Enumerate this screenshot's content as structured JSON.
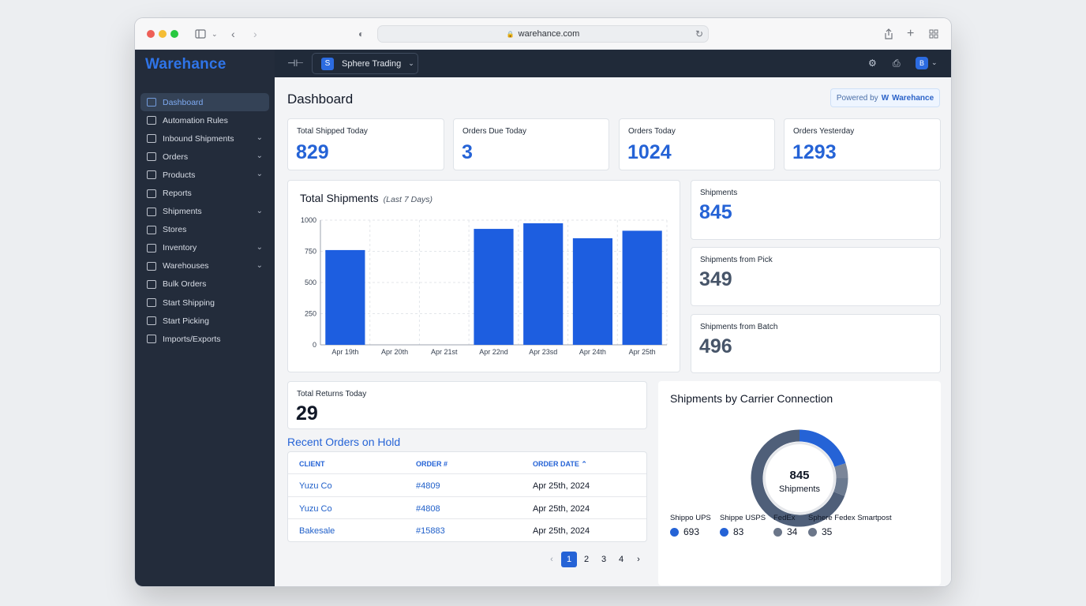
{
  "browser": {
    "url": "warehance.com"
  },
  "app": {
    "logo": "Warehance"
  },
  "sidebar": {
    "items": [
      {
        "label": "Dashboard",
        "active": true,
        "expandable": false,
        "icon": "monitor-icon"
      },
      {
        "label": "Automation Rules",
        "expandable": false,
        "icon": "automation-icon"
      },
      {
        "label": "Inbound Shipments",
        "expandable": true,
        "icon": "clipboard-icon"
      },
      {
        "label": "Orders",
        "expandable": true,
        "icon": "folder-icon"
      },
      {
        "label": "Products",
        "expandable": true,
        "icon": "boxes-icon"
      },
      {
        "label": "Reports",
        "expandable": false,
        "icon": "clock-icon"
      },
      {
        "label": "Shipments",
        "expandable": true,
        "icon": "list-icon"
      },
      {
        "label": "Stores",
        "expandable": false,
        "icon": "database-icon"
      },
      {
        "label": "Inventory",
        "expandable": true,
        "icon": "truck-icon"
      },
      {
        "label": "Warehouses",
        "expandable": true,
        "icon": "warehouse-icon"
      },
      {
        "label": "Bulk Orders",
        "expandable": false,
        "icon": "package-icon"
      },
      {
        "label": "Start Shipping",
        "expandable": false,
        "icon": "shipping-icon"
      },
      {
        "label": "Start Picking",
        "expandable": false,
        "icon": "radio-icon"
      },
      {
        "label": "Imports/Exports",
        "expandable": false,
        "icon": "arrows-icon"
      }
    ]
  },
  "topbar": {
    "tenant_initial": "S",
    "tenant_name": "Sphere Trading",
    "user_initial": "B"
  },
  "header": {
    "title": "Dashboard",
    "powered_by": "Powered by",
    "powered_brand": "Warehance"
  },
  "stats": [
    {
      "label": "Total Shipped Today",
      "value": "829"
    },
    {
      "label": "Orders Due Today",
      "value": "3"
    },
    {
      "label": "Orders Today",
      "value": "1024"
    },
    {
      "label": "Orders Yesterday",
      "value": "1293"
    }
  ],
  "side_stats": [
    {
      "label": "Shipments",
      "value": "845"
    },
    {
      "label": "Shipments from Pick",
      "value": "349"
    },
    {
      "label": "Shipments from Batch",
      "value": "496"
    }
  ],
  "returns": {
    "label": "Total Returns Today",
    "value": "29"
  },
  "chart_data": {
    "type": "bar",
    "title": "Total Shipments",
    "subtitle": "(Last 7 Days)",
    "categories": [
      "Apr 19th",
      "Apr 20th",
      "Apr 21st",
      "Apr 22nd",
      "Apr 23sd",
      "Apr 24th",
      "Apr 25th"
    ],
    "values": [
      760,
      0,
      0,
      930,
      975,
      855,
      915
    ],
    "ylim": [
      0,
      1000
    ],
    "yticks": [
      0,
      250,
      500,
      750,
      1000
    ],
    "grid": true,
    "color": "#1d5ee0"
  },
  "recent_orders": {
    "title": "Recent Orders on Hold",
    "columns": [
      "CLIENT",
      "ORDER #",
      "ORDER DATE"
    ],
    "rows": [
      {
        "client": "Yuzu Co",
        "order": "#4809",
        "date": "Apr 25th, 2024"
      },
      {
        "client": "Yuzu Co",
        "order": "#4808",
        "date": "Apr 25th, 2024"
      },
      {
        "client": "Bakesale",
        "order": "#15883",
        "date": "Apr 25th, 2024"
      }
    ],
    "pages": [
      "1",
      "2",
      "3",
      "4"
    ],
    "current_page": "1"
  },
  "carrier": {
    "title": "Shipments by Carrier Connection",
    "total": "845",
    "total_label": "Shipments",
    "items": [
      {
        "name": "Shippo UPS",
        "value": "693",
        "color": "#4f5f79"
      },
      {
        "name": "Shippe USPS",
        "value": "83",
        "color": "#2563d6"
      },
      {
        "name": "FedEx",
        "value": "34",
        "color": "#7b8699"
      },
      {
        "name": "Sphere Fedex Smartpost",
        "value": "35",
        "color": "#6b7a90"
      }
    ]
  }
}
